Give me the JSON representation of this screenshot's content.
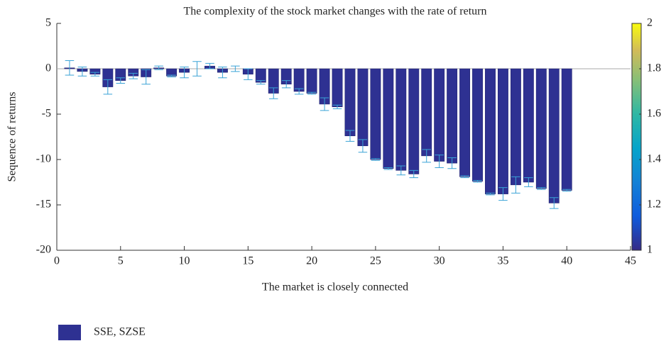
{
  "chart_data": {
    "type": "bar",
    "title": "The complexity of the stock market changes with the rate of return",
    "xlabel": "The market is closely connected",
    "ylabel": "Sequence of returns",
    "x": [
      1,
      2,
      3,
      4,
      5,
      6,
      7,
      8,
      9,
      10,
      11,
      12,
      13,
      14,
      15,
      16,
      17,
      18,
      19,
      20,
      21,
      22,
      23,
      24,
      25,
      26,
      27,
      28,
      29,
      30,
      31,
      32,
      33,
      34,
      35,
      36,
      37,
      38,
      39,
      40
    ],
    "series": [
      {
        "name": "SSE, SZSE",
        "color": "#2e3192",
        "error_color": "#3aa3d6",
        "values": [
          0.1,
          -0.3,
          -0.6,
          -2.0,
          -1.3,
          -0.8,
          -0.9,
          0.1,
          -0.8,
          -0.4,
          0.0,
          0.3,
          -0.4,
          0.0,
          -0.6,
          -1.5,
          -2.7,
          -1.7,
          -2.5,
          -2.7,
          -3.9,
          -4.2,
          -7.4,
          -8.5,
          -10.0,
          -11.0,
          -11.2,
          -11.6,
          -9.6,
          -10.2,
          -10.4,
          -11.9,
          -12.4,
          -13.8,
          -13.8,
          -12.8,
          -12.5,
          -13.2,
          -14.8,
          -13.4
        ],
        "errors": [
          0.8,
          0.5,
          0.2,
          0.8,
          0.3,
          0.3,
          0.8,
          0.2,
          0.1,
          0.6,
          0.8,
          0.3,
          0.6,
          0.3,
          0.6,
          0.2,
          0.6,
          0.4,
          0.3,
          0.1,
          0.7,
          0.2,
          0.6,
          0.7,
          0.1,
          0.1,
          0.5,
          0.4,
          0.7,
          0.7,
          0.6,
          0.1,
          0.1,
          0.1,
          0.7,
          0.9,
          0.5,
          0.1,
          0.6,
          0.1
        ]
      }
    ],
    "xlim": [
      0,
      45
    ],
    "xticks": [
      0,
      5,
      10,
      15,
      20,
      25,
      30,
      35,
      40,
      45
    ],
    "ylim": [
      -20,
      5
    ],
    "yticks": [
      -20,
      -15,
      -10,
      -5,
      0,
      5
    ],
    "colorbar": {
      "lim": [
        1,
        2
      ],
      "ticks": [
        1,
        1.2,
        1.4,
        1.6,
        1.8,
        2
      ]
    },
    "legend": "bottom-left"
  }
}
